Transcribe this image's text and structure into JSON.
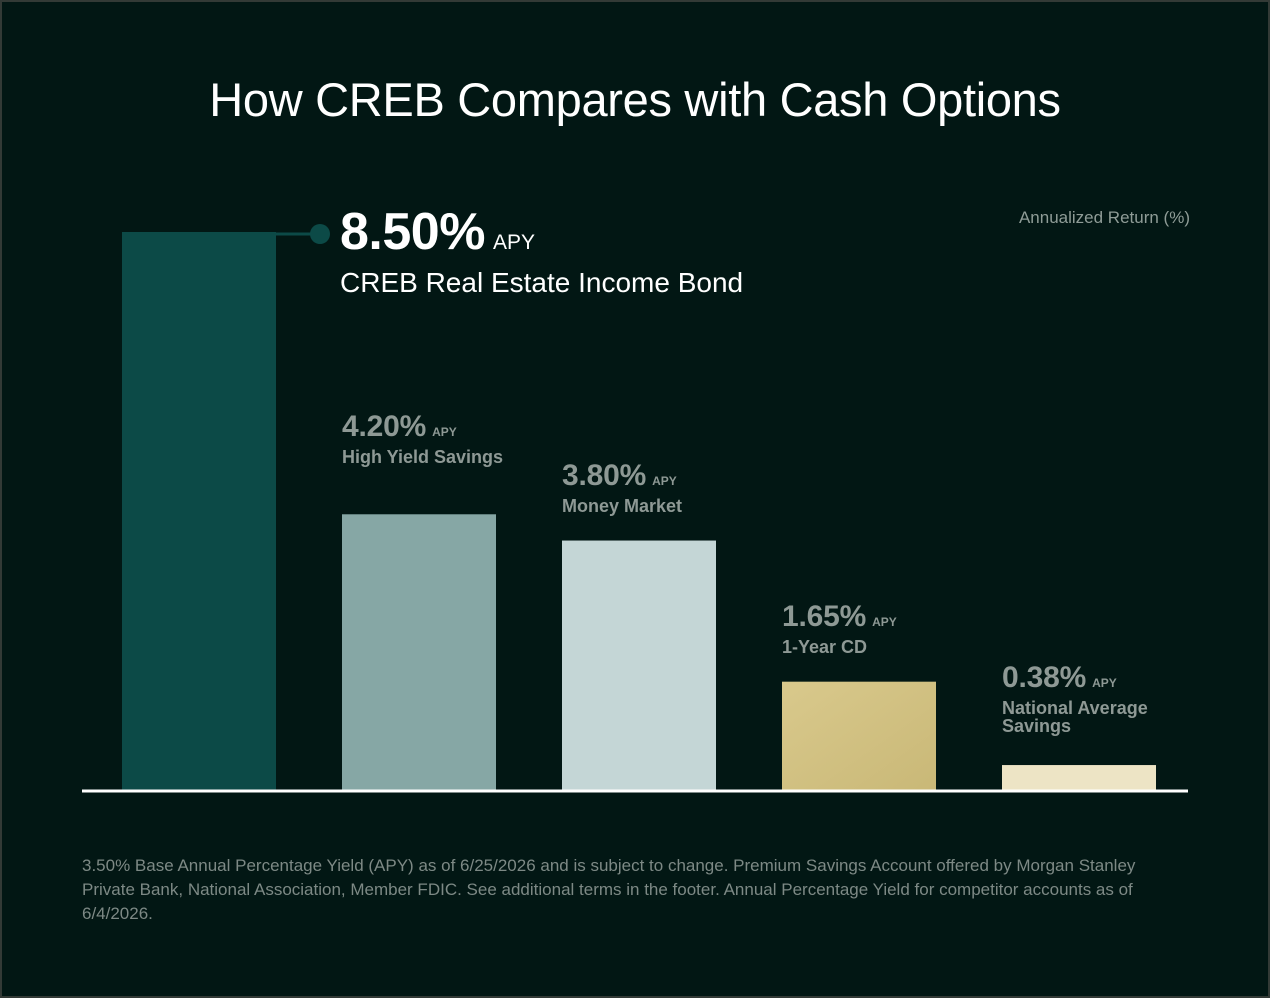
{
  "chart_data": {
    "type": "bar",
    "title": "How CREB Compares with Cash Options",
    "ylabel": "Annualized Return (%)",
    "xlabel": "",
    "ylim": [
      0,
      8.5
    ],
    "categories": [
      "CREB Real Estate Income Bond",
      "High Yield Savings",
      "Money Market",
      "1-Year CD",
      "National Average Savings"
    ],
    "values": [
      8.5,
      4.2,
      3.8,
      1.65,
      0.38
    ],
    "value_labels": [
      "8.50%",
      "4.20%",
      "3.80%",
      "1.65%",
      "0.38%"
    ],
    "value_suffix": "APY",
    "bar_colors": [
      "#0c4a47",
      "#86a7a5",
      "#c4d6d6",
      "#d4c384",
      "#ede4c5"
    ],
    "grid": false,
    "legend": "none"
  },
  "footnote": "3.50% Base Annual Percentage Yield (APY) as of 6/25/2026 and is subject to change. Premium Savings Account offered by Morgan Stanley Private Bank, National Association, Member FDIC. See additional terms in the footer. Annual Percentage Yield for competitor accounts as of 6/4/2026."
}
